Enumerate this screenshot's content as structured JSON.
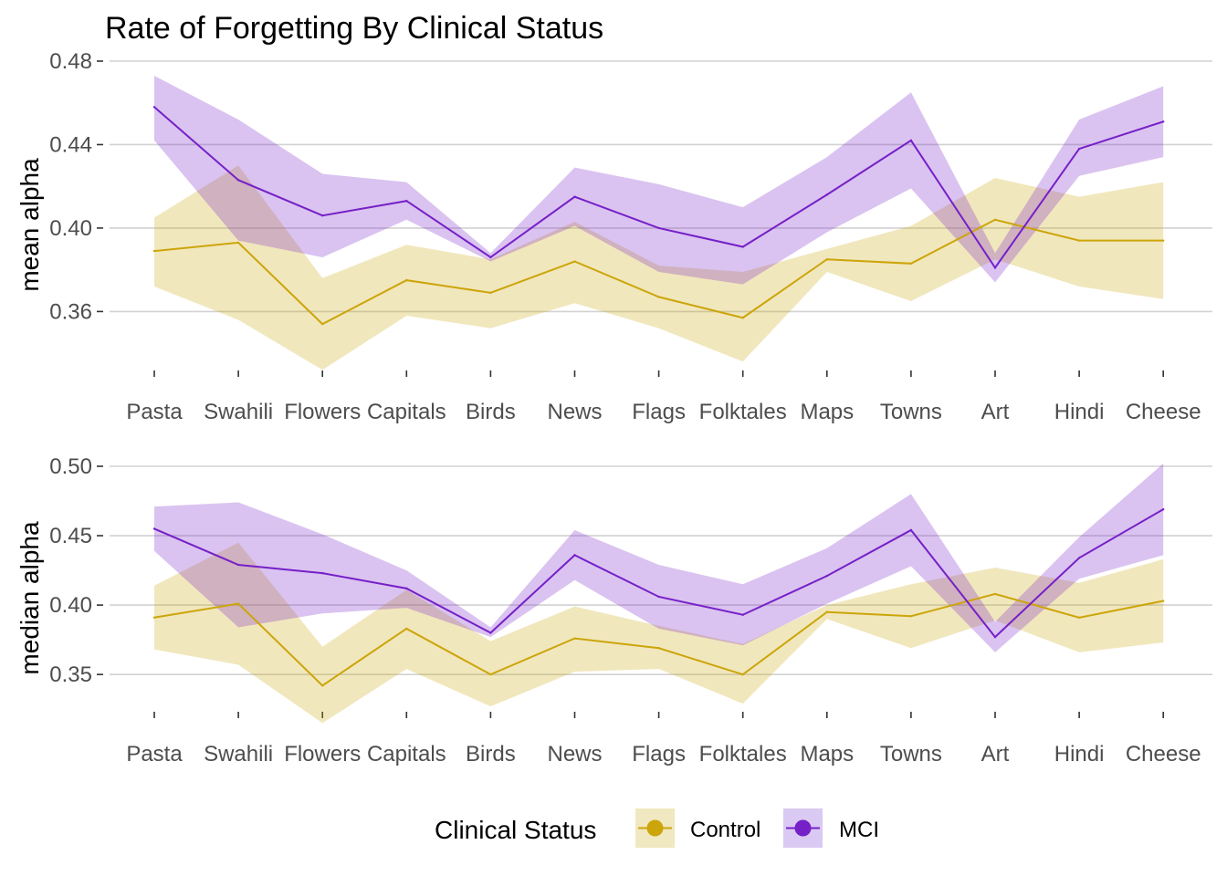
{
  "title": "Rate of Forgetting By Clinical Status",
  "legend": {
    "title": "Clinical Status",
    "entries": [
      {
        "label": "Control",
        "color": "#cca50a",
        "fill": "#f0e8c0"
      },
      {
        "label": "MCI",
        "color": "#7620c8",
        "fill": "#dac9f2"
      }
    ]
  },
  "chart_data": [
    {
      "type": "line",
      "ylabel": "mean alpha",
      "categories": [
        "Pasta",
        "Swahili",
        "Flowers",
        "Capitals",
        "Birds",
        "News",
        "Flags",
        "Folktales",
        "Maps",
        "Towns",
        "Art",
        "Hindi",
        "Cheese"
      ],
      "yticks": [
        0.36,
        0.4,
        0.44,
        0.48
      ],
      "ytick_labels": [
        "0.36",
        "0.40",
        "0.44",
        "0.48"
      ],
      "ylim": [
        0.323,
        0.48
      ],
      "grid": true,
      "series": [
        {
          "name": "Control",
          "values": [
            0.389,
            0.393,
            0.354,
            0.375,
            0.369,
            0.384,
            0.367,
            0.357,
            0.385,
            0.383,
            0.404,
            0.394,
            0.394
          ],
          "lower": [
            0.372,
            0.356,
            0.332,
            0.358,
            0.352,
            0.364,
            0.352,
            0.336,
            0.379,
            0.365,
            0.385,
            0.372,
            0.366
          ],
          "upper": [
            0.405,
            0.43,
            0.376,
            0.392,
            0.385,
            0.403,
            0.382,
            0.379,
            0.39,
            0.401,
            0.424,
            0.415,
            0.422
          ]
        },
        {
          "name": "MCI",
          "values": [
            0.458,
            0.423,
            0.406,
            0.413,
            0.386,
            0.415,
            0.4,
            0.391,
            0.416,
            0.442,
            0.381,
            0.438,
            0.451
          ],
          "lower": [
            0.442,
            0.394,
            0.386,
            0.404,
            0.384,
            0.401,
            0.379,
            0.373,
            0.398,
            0.419,
            0.374,
            0.425,
            0.434
          ],
          "upper": [
            0.473,
            0.452,
            0.426,
            0.422,
            0.388,
            0.429,
            0.421,
            0.41,
            0.434,
            0.465,
            0.388,
            0.452,
            0.468
          ]
        }
      ]
    },
    {
      "type": "line",
      "ylabel": "median alpha",
      "categories": [
        "Pasta",
        "Swahili",
        "Flowers",
        "Capitals",
        "Birds",
        "News",
        "Flags",
        "Folktales",
        "Maps",
        "Towns",
        "Art",
        "Hindi",
        "Cheese"
      ],
      "yticks": [
        0.35,
        0.4,
        0.45,
        0.5
      ],
      "ytick_labels": [
        "0.35",
        "0.40",
        "0.45",
        "0.50"
      ],
      "ylim": [
        0.31,
        0.5
      ],
      "grid": true,
      "series": [
        {
          "name": "Control",
          "values": [
            0.391,
            0.401,
            0.342,
            0.383,
            0.35,
            0.376,
            0.369,
            0.35,
            0.395,
            0.392,
            0.408,
            0.391,
            0.403
          ],
          "lower": [
            0.368,
            0.357,
            0.315,
            0.354,
            0.327,
            0.352,
            0.354,
            0.329,
            0.39,
            0.369,
            0.389,
            0.366,
            0.373
          ],
          "upper": [
            0.414,
            0.445,
            0.37,
            0.411,
            0.374,
            0.399,
            0.385,
            0.372,
            0.4,
            0.415,
            0.427,
            0.416,
            0.433
          ]
        },
        {
          "name": "MCI",
          "values": [
            0.455,
            0.429,
            0.423,
            0.412,
            0.38,
            0.436,
            0.406,
            0.393,
            0.421,
            0.454,
            0.377,
            0.434,
            0.469
          ],
          "lower": [
            0.439,
            0.384,
            0.394,
            0.398,
            0.377,
            0.418,
            0.383,
            0.371,
            0.401,
            0.428,
            0.366,
            0.419,
            0.436
          ],
          "upper": [
            0.471,
            0.474,
            0.451,
            0.425,
            0.384,
            0.454,
            0.429,
            0.415,
            0.441,
            0.48,
            0.388,
            0.449,
            0.502
          ]
        }
      ]
    }
  ]
}
